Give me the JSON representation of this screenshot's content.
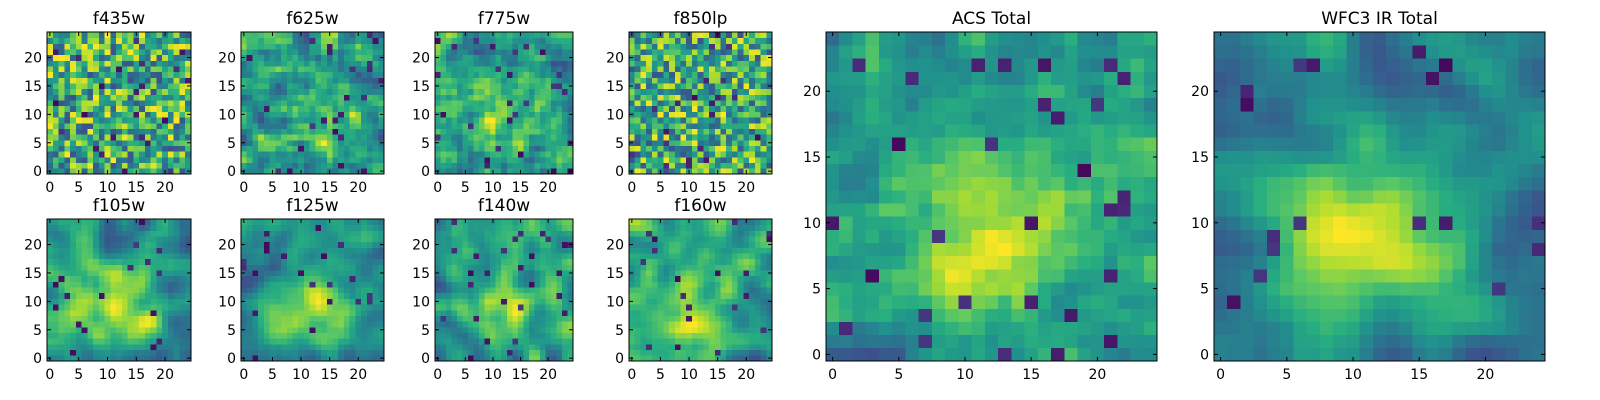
{
  "chart_data": [
    {
      "type": "heatmap",
      "title": "f435w",
      "cmap": "viridis",
      "grid_size": 25,
      "xlim": [
        -0.5,
        24.5
      ],
      "ylim": [
        -0.5,
        24.5
      ],
      "xticks": [
        0,
        5,
        10,
        15,
        20
      ],
      "yticks": [
        0,
        5,
        10,
        15,
        20
      ],
      "xtick_labels": [
        "0",
        "5",
        "10",
        "15",
        "20"
      ],
      "ytick_labels": [
        "0",
        "5",
        "10",
        "15",
        "20"
      ],
      "seed": 11,
      "smooth": 0,
      "gradient": 0
    },
    {
      "type": "heatmap",
      "title": "f625w",
      "cmap": "viridis",
      "grid_size": 25,
      "xlim": [
        -0.5,
        24.5
      ],
      "ylim": [
        -0.5,
        24.5
      ],
      "xticks": [
        0,
        5,
        10,
        15,
        20
      ],
      "yticks": [
        0,
        5,
        10,
        15,
        20
      ],
      "xtick_labels": [
        "0",
        "5",
        "10",
        "15",
        "20"
      ],
      "ytick_labels": [
        "0",
        "5",
        "10",
        "15",
        "20"
      ],
      "seed": 23,
      "smooth": 1,
      "gradient": 0.15
    },
    {
      "type": "heatmap",
      "title": "f775w",
      "cmap": "viridis",
      "grid_size": 25,
      "xlim": [
        -0.5,
        24.5
      ],
      "ylim": [
        -0.5,
        24.5
      ],
      "xticks": [
        0,
        5,
        10,
        15,
        20
      ],
      "yticks": [
        0,
        5,
        10,
        15,
        20
      ],
      "xtick_labels": [
        "0",
        "5",
        "10",
        "15",
        "20"
      ],
      "ytick_labels": [
        "0",
        "5",
        "10",
        "15",
        "20"
      ],
      "seed": 37,
      "smooth": 1,
      "gradient": 0.2
    },
    {
      "type": "heatmap",
      "title": "f850lp",
      "cmap": "viridis",
      "grid_size": 25,
      "xlim": [
        -0.5,
        24.5
      ],
      "ylim": [
        -0.5,
        24.5
      ],
      "xticks": [
        0,
        5,
        10,
        15,
        20
      ],
      "yticks": [
        0,
        5,
        10,
        15,
        20
      ],
      "xtick_labels": [
        "0",
        "5",
        "10",
        "15",
        "20"
      ],
      "ytick_labels": [
        "0",
        "5",
        "10",
        "15",
        "20"
      ],
      "seed": 41,
      "smooth": 0,
      "gradient": 0.05
    },
    {
      "type": "heatmap",
      "title": "f105w",
      "cmap": "viridis",
      "grid_size": 25,
      "xlim": [
        -0.5,
        24.5
      ],
      "ylim": [
        -0.5,
        24.5
      ],
      "xticks": [
        0,
        5,
        10,
        15,
        20
      ],
      "yticks": [
        0,
        5,
        10,
        15,
        20
      ],
      "xtick_labels": [
        "0",
        "5",
        "10",
        "15",
        "20"
      ],
      "ytick_labels": [
        "0",
        "5",
        "10",
        "15",
        "20"
      ],
      "seed": 53,
      "smooth": 2,
      "gradient": 0.25
    },
    {
      "type": "heatmap",
      "title": "f125w",
      "cmap": "viridis",
      "grid_size": 25,
      "xlim": [
        -0.5,
        24.5
      ],
      "ylim": [
        -0.5,
        24.5
      ],
      "xticks": [
        0,
        5,
        10,
        15,
        20
      ],
      "yticks": [
        0,
        5,
        10,
        15,
        20
      ],
      "xtick_labels": [
        "0",
        "5",
        "10",
        "15",
        "20"
      ],
      "ytick_labels": [
        "0",
        "5",
        "10",
        "15",
        "20"
      ],
      "seed": 67,
      "smooth": 2,
      "gradient": 0.3
    },
    {
      "type": "heatmap",
      "title": "f140w",
      "cmap": "viridis",
      "grid_size": 25,
      "xlim": [
        -0.5,
        24.5
      ],
      "ylim": [
        -0.5,
        24.5
      ],
      "xticks": [
        0,
        5,
        10,
        15,
        20
      ],
      "yticks": [
        0,
        5,
        10,
        15,
        20
      ],
      "xtick_labels": [
        "0",
        "5",
        "10",
        "15",
        "20"
      ],
      "ytick_labels": [
        "0",
        "5",
        "10",
        "15",
        "20"
      ],
      "seed": 79,
      "smooth": 2,
      "gradient": 0.2
    },
    {
      "type": "heatmap",
      "title": "f160w",
      "cmap": "viridis",
      "grid_size": 25,
      "xlim": [
        -0.5,
        24.5
      ],
      "ylim": [
        -0.5,
        24.5
      ],
      "xticks": [
        0,
        5,
        10,
        15,
        20
      ],
      "yticks": [
        0,
        5,
        10,
        15,
        20
      ],
      "xtick_labels": [
        "0",
        "5",
        "10",
        "15",
        "20"
      ],
      "ytick_labels": [
        "0",
        "5",
        "10",
        "15",
        "20"
      ],
      "seed": 83,
      "smooth": 2,
      "gradient": 0.25
    },
    {
      "type": "heatmap",
      "title": "ACS Total",
      "cmap": "viridis",
      "grid_size": 25,
      "xlim": [
        -0.5,
        24.5
      ],
      "ylim": [
        -0.5,
        24.5
      ],
      "xticks": [
        0,
        5,
        10,
        15,
        20
      ],
      "yticks": [
        0,
        5,
        10,
        15,
        20
      ],
      "xtick_labels": [
        "0",
        "5",
        "10",
        "15",
        "20"
      ],
      "ytick_labels": [
        "0",
        "5",
        "10",
        "15",
        "20"
      ],
      "seed": 97,
      "smooth": 1,
      "gradient": 0.45
    },
    {
      "type": "heatmap",
      "title": "WFC3 IR Total",
      "cmap": "viridis",
      "grid_size": 25,
      "xlim": [
        -0.5,
        24.5
      ],
      "ylim": [
        -0.5,
        24.5
      ],
      "xticks": [
        0,
        5,
        10,
        15,
        20
      ],
      "yticks": [
        0,
        5,
        10,
        15,
        20
      ],
      "xtick_labels": [
        "0",
        "5",
        "10",
        "15",
        "20"
      ],
      "ytick_labels": [
        "0",
        "5",
        "10",
        "15",
        "20"
      ],
      "seed": 101,
      "smooth": 2,
      "gradient": 0.5
    }
  ],
  "colors": {
    "viridis": [
      "#440154",
      "#472c7a",
      "#3b518b",
      "#2c718e",
      "#21908d",
      "#27ad81",
      "#5cc863",
      "#aadc32",
      "#fde725"
    ],
    "axis": "#000000"
  }
}
